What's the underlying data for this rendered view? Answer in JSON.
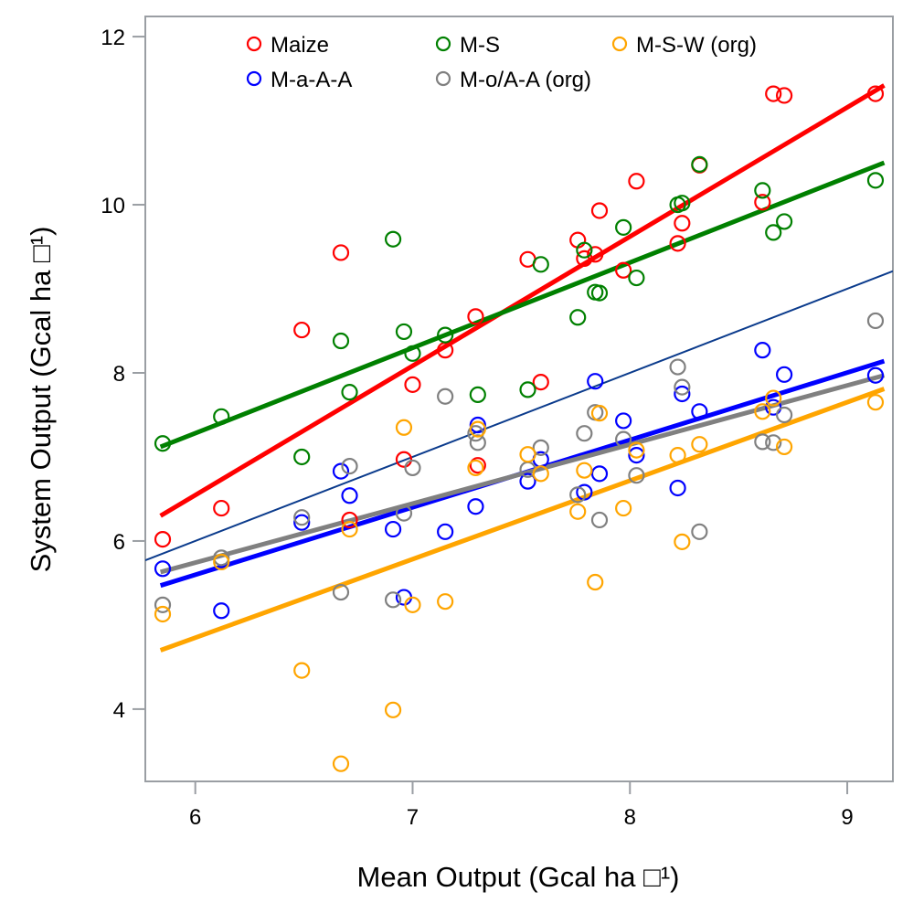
{
  "chart_data": {
    "type": "scatter",
    "title": "",
    "xlabel": "Mean Output (Gcal ha □¹)",
    "ylabel": "System Output (Gcal ha □¹)",
    "xlim": [
      5.77,
      9.21
    ],
    "ylim": [
      3.14,
      12.24
    ],
    "xticks": [
      6,
      7,
      8,
      9
    ],
    "yticks": [
      4,
      6,
      8,
      10,
      12
    ],
    "xtick_labels": [
      "6",
      "7",
      "8",
      "9"
    ],
    "ytick_labels": [
      "4",
      "6",
      "8",
      "10",
      "12"
    ],
    "grid": false,
    "legend_position": "top",
    "reference_line": {
      "name": "1:1 line",
      "color": "#0b3b8c",
      "slope": 1,
      "intercept": 0
    },
    "series": [
      {
        "name": "Maize",
        "color": "#ff0000",
        "x": [
          5.85,
          6.12,
          6.49,
          6.67,
          6.71,
          6.96,
          7.0,
          7.15,
          7.29,
          7.3,
          7.53,
          7.59,
          7.76,
          7.79,
          7.84,
          7.86,
          7.97,
          8.03,
          8.22,
          8.24,
          8.32,
          8.61,
          8.66,
          8.71,
          9.13
        ],
        "y": [
          6.02,
          6.39,
          8.51,
          9.43,
          6.25,
          6.97,
          7.86,
          8.27,
          8.67,
          6.9,
          9.35,
          7.89,
          9.58,
          9.36,
          9.41,
          9.93,
          9.22,
          10.28,
          9.54,
          9.78,
          10.47,
          10.03,
          11.32,
          11.3,
          11.32
        ],
        "fit": {
          "x": [
            5.84,
            9.17
          ],
          "y": [
            6.3,
            11.42
          ]
        }
      },
      {
        "name": "M-S",
        "color": "#008000",
        "x": [
          5.85,
          6.12,
          6.49,
          6.67,
          6.71,
          6.91,
          6.96,
          7.0,
          7.15,
          7.3,
          7.53,
          7.59,
          7.76,
          7.79,
          7.84,
          7.86,
          7.97,
          8.03,
          8.22,
          8.24,
          8.32,
          8.61,
          8.66,
          8.71,
          9.13
        ],
        "y": [
          7.16,
          7.48,
          7.0,
          8.38,
          7.77,
          9.59,
          8.49,
          8.23,
          8.45,
          7.74,
          7.8,
          9.29,
          8.66,
          9.46,
          8.96,
          8.95,
          9.73,
          9.13,
          10.0,
          10.02,
          10.48,
          10.17,
          9.67,
          9.8,
          10.29
        ],
        "fit": {
          "x": [
            5.84,
            9.17
          ],
          "y": [
            7.12,
            10.5
          ]
        }
      },
      {
        "name": "M-a-A-A",
        "color": "#0000ff",
        "x": [
          5.85,
          6.12,
          6.49,
          6.67,
          6.71,
          6.91,
          6.96,
          7.15,
          7.29,
          7.3,
          7.53,
          7.59,
          7.79,
          7.84,
          7.86,
          7.97,
          8.03,
          8.22,
          8.24,
          8.32,
          8.61,
          8.66,
          8.71,
          9.13
        ],
        "y": [
          5.67,
          5.17,
          6.22,
          6.83,
          6.54,
          6.14,
          5.33,
          6.11,
          6.41,
          7.38,
          6.71,
          6.97,
          6.58,
          7.9,
          6.8,
          7.43,
          7.02,
          6.63,
          7.75,
          7.54,
          8.27,
          7.59,
          7.98,
          7.97
        ],
        "fit": {
          "x": [
            5.84,
            9.17
          ],
          "y": [
            5.47,
            8.14
          ]
        }
      },
      {
        "name": "M-o/A-A (org)",
        "color": "#808080",
        "x": [
          5.85,
          6.12,
          6.49,
          6.67,
          6.71,
          6.91,
          6.96,
          7.0,
          7.15,
          7.29,
          7.3,
          7.53,
          7.59,
          7.76,
          7.79,
          7.84,
          7.86,
          7.97,
          8.03,
          8.22,
          8.24,
          8.32,
          8.61,
          8.66,
          8.71,
          9.13
        ],
        "y": [
          5.24,
          5.8,
          6.28,
          5.39,
          6.89,
          5.3,
          6.33,
          6.87,
          7.72,
          7.28,
          7.17,
          6.85,
          7.11,
          6.55,
          7.28,
          7.53,
          6.25,
          7.21,
          6.78,
          8.07,
          7.83,
          6.11,
          7.18,
          7.17,
          7.5,
          8.62
        ],
        "fit": {
          "x": [
            5.84,
            9.17
          ],
          "y": [
            5.63,
            7.97
          ]
        }
      },
      {
        "name": "M-S-W (org)",
        "color": "#ffa500",
        "x": [
          5.85,
          6.12,
          6.49,
          6.67,
          6.71,
          6.91,
          6.96,
          7.0,
          7.15,
          7.29,
          7.3,
          7.53,
          7.59,
          7.76,
          7.79,
          7.84,
          7.86,
          7.97,
          8.03,
          8.22,
          8.24,
          8.32,
          8.61,
          8.66,
          8.71,
          9.13
        ],
        "y": [
          5.13,
          5.75,
          4.46,
          3.35,
          6.14,
          3.99,
          7.35,
          5.24,
          5.28,
          6.87,
          7.33,
          7.03,
          6.8,
          6.35,
          6.84,
          5.51,
          7.52,
          6.39,
          7.08,
          7.02,
          5.99,
          7.15,
          7.54,
          7.7,
          7.12,
          7.65
        ],
        "fit": {
          "x": [
            5.84,
            9.17
          ],
          "y": [
            4.7,
            7.81
          ]
        }
      }
    ],
    "legend": [
      {
        "label": "Maize",
        "color": "#ff0000"
      },
      {
        "label": "M-S",
        "color": "#008000"
      },
      {
        "label": "M-S-W (org)",
        "color": "#ffa500"
      },
      {
        "label": "M-a-A-A",
        "color": "#0000ff"
      },
      {
        "label": "M-o/A-A (org)",
        "color": "#808080"
      }
    ]
  }
}
